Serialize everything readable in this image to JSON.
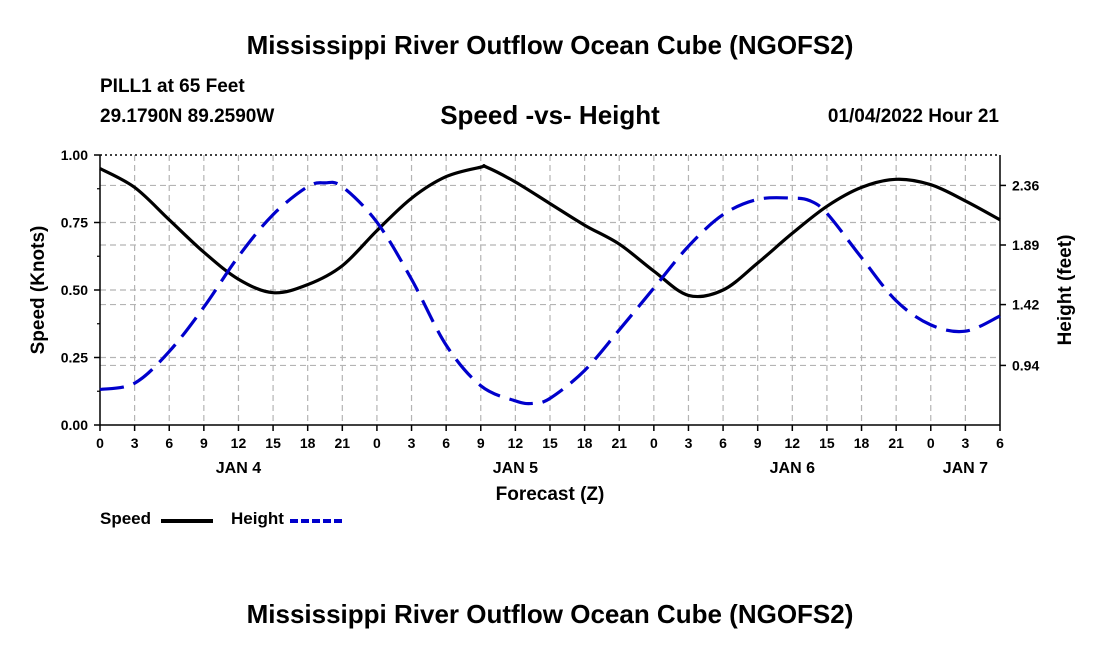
{
  "header": {
    "main_title": "Mississippi River Outflow Ocean Cube (NGOFS2)",
    "station": "PILL1 at 65 Feet",
    "coords": "29.1790N  89.2590W",
    "subtitle": "Speed -vs- Height",
    "timestamp": "01/04/2022 Hour 21"
  },
  "footer": {
    "title": "Mississippi River Outflow Ocean Cube (NGOFS2)"
  },
  "legend": {
    "speed_label": "Speed",
    "height_label": "Height"
  },
  "colors": {
    "speed": "#000000",
    "height": "#0000cc",
    "grid": "#b4b4b4"
  },
  "chart_data": {
    "type": "line",
    "title": "Speed -vs- Height",
    "xlabel": "Forecast (Z)",
    "ylabel": "Speed (Knots)",
    "y2label": "Height (feet)",
    "grid": true,
    "xlim": [
      0,
      78
    ],
    "ylim": [
      0,
      1
    ],
    "y2lim": [
      0.47,
      2.6
    ],
    "x_ticks": [
      0,
      3,
      6,
      9,
      12,
      15,
      18,
      21,
      24,
      27,
      30,
      33,
      36,
      39,
      42,
      45,
      48,
      51,
      54,
      57,
      60,
      63,
      66,
      69,
      72,
      75,
      78
    ],
    "x_tick_labels": [
      "0",
      "3",
      "6",
      "9",
      "12",
      "15",
      "18",
      "21",
      "0",
      "3",
      "6",
      "9",
      "12",
      "15",
      "18",
      "21",
      "0",
      "3",
      "6",
      "9",
      "12",
      "15",
      "18",
      "21",
      "0",
      "3",
      "6"
    ],
    "date_labels": [
      {
        "x": 12,
        "label": "JAN 4"
      },
      {
        "x": 36,
        "label": "JAN 5"
      },
      {
        "x": 60,
        "label": "JAN 6"
      },
      {
        "x": 75,
        "label": "JAN 7"
      }
    ],
    "y_ticks": [
      0,
      0.25,
      0.5,
      0.75,
      1.0
    ],
    "y_tick_labels": [
      "0.00",
      "0.25",
      "0.50",
      "0.75",
      "1.00"
    ],
    "y2_ticks": [
      0.94,
      1.42,
      1.89,
      2.36
    ],
    "y2_tick_labels": [
      "0.94",
      "1.42",
      "1.89",
      "2.36"
    ],
    "series": [
      {
        "name": "Speed",
        "axis": "left",
        "style": "solid",
        "x": [
          0,
          3,
          6,
          9,
          12,
          15,
          18,
          21,
          24,
          27,
          30,
          33,
          33.5,
          36,
          39,
          42,
          45,
          48,
          51,
          54,
          57,
          60,
          63,
          66,
          69,
          72,
          75,
          78
        ],
        "values": [
          0.95,
          0.88,
          0.76,
          0.64,
          0.54,
          0.49,
          0.52,
          0.59,
          0.72,
          0.84,
          0.92,
          0.955,
          0.955,
          0.9,
          0.82,
          0.74,
          0.67,
          0.57,
          0.48,
          0.5,
          0.6,
          0.71,
          0.81,
          0.88,
          0.91,
          0.89,
          0.83,
          0.76
        ]
      },
      {
        "name": "Height",
        "axis": "right",
        "style": "dashed",
        "x": [
          0,
          3,
          6,
          9,
          12,
          15,
          18,
          19.5,
          21,
          24,
          27,
          30,
          33,
          36,
          37.5,
          39,
          42,
          45,
          48,
          51,
          54,
          57,
          60,
          61.5,
          63,
          66,
          69,
          72,
          75,
          78
        ],
        "values": [
          0.75,
          0.8,
          1.05,
          1.4,
          1.8,
          2.13,
          2.35,
          2.38,
          2.35,
          2.07,
          1.62,
          1.1,
          0.78,
          0.66,
          0.64,
          0.68,
          0.9,
          1.22,
          1.55,
          1.88,
          2.13,
          2.25,
          2.26,
          2.24,
          2.14,
          1.79,
          1.45,
          1.26,
          1.21,
          1.33
        ]
      }
    ]
  }
}
